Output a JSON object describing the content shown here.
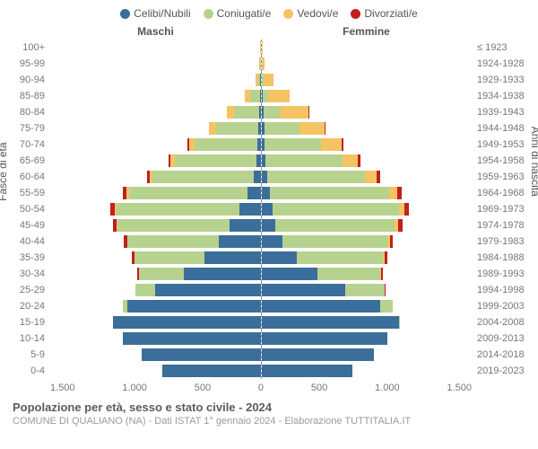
{
  "legend": [
    {
      "label": "Celibi/Nubili",
      "color": "#3b6e9a"
    },
    {
      "label": "Coniugati/e",
      "color": "#b6d28e"
    },
    {
      "label": "Vedovi/e",
      "color": "#f4c463"
    },
    {
      "label": "Divorziati/e",
      "color": "#c21f1f"
    }
  ],
  "header": {
    "male": "Maschi",
    "female": "Femmine"
  },
  "axes": {
    "y_left_label": "Fasce di età",
    "y_right_label": "Anni di nascita",
    "x_ticks": [
      "1.500",
      "1.000",
      "500",
      "0",
      "500",
      "1.000",
      "1.500"
    ],
    "x_max": 1500
  },
  "footer": {
    "title": "Popolazione per età, sesso e stato civile - 2024",
    "subtitle": "COMUNE DI QUALIANO (NA) - Dati ISTAT 1° gennaio 2024 - Elaborazione TUTTITALIA.IT"
  },
  "colors": {
    "celibi": "#3b6e9a",
    "coniugati": "#b6d28e",
    "vedovi": "#f4c463",
    "divorziati": "#c21f1f",
    "bg": "#ffffff",
    "axis_dash": "#999999",
    "text_muted": "#777777"
  },
  "rows": [
    {
      "age": "100+",
      "years": "≤ 1923",
      "m": {
        "cel": 0,
        "con": 0,
        "ved": 3,
        "div": 0
      },
      "f": {
        "cel": 0,
        "con": 0,
        "ved": 6,
        "div": 0
      }
    },
    {
      "age": "95-99",
      "years": "1924-1928",
      "m": {
        "cel": 0,
        "con": 3,
        "ved": 6,
        "div": 0
      },
      "f": {
        "cel": 0,
        "con": 3,
        "ved": 20,
        "div": 0
      }
    },
    {
      "age": "90-94",
      "years": "1929-1933",
      "m": {
        "cel": 2,
        "con": 15,
        "ved": 20,
        "div": 0
      },
      "f": {
        "cel": 5,
        "con": 10,
        "ved": 70,
        "div": 0
      }
    },
    {
      "age": "85-89",
      "years": "1934-1938",
      "m": {
        "cel": 5,
        "con": 70,
        "ved": 40,
        "div": 0
      },
      "f": {
        "cel": 10,
        "con": 40,
        "ved": 150,
        "div": 0
      }
    },
    {
      "age": "80-84",
      "years": "1939-1943",
      "m": {
        "cel": 10,
        "con": 180,
        "ved": 50,
        "div": 2
      },
      "f": {
        "cel": 15,
        "con": 120,
        "ved": 200,
        "div": 3
      }
    },
    {
      "age": "75-79",
      "years": "1944-1948",
      "m": {
        "cel": 15,
        "con": 300,
        "ved": 50,
        "div": 5
      },
      "f": {
        "cel": 20,
        "con": 250,
        "ved": 180,
        "div": 5
      }
    },
    {
      "age": "70-74",
      "years": "1949-1953",
      "m": {
        "cel": 20,
        "con": 450,
        "ved": 40,
        "div": 10
      },
      "f": {
        "cel": 25,
        "con": 400,
        "ved": 150,
        "div": 10
      }
    },
    {
      "age": "65-69",
      "years": "1954-1958",
      "m": {
        "cel": 30,
        "con": 580,
        "ved": 30,
        "div": 15
      },
      "f": {
        "cel": 30,
        "con": 550,
        "ved": 110,
        "div": 15
      }
    },
    {
      "age": "60-64",
      "years": "1959-1963",
      "m": {
        "cel": 50,
        "con": 720,
        "ved": 20,
        "div": 20
      },
      "f": {
        "cel": 40,
        "con": 700,
        "ved": 80,
        "div": 25
      }
    },
    {
      "age": "55-59",
      "years": "1964-1968",
      "m": {
        "cel": 90,
        "con": 850,
        "ved": 15,
        "div": 25
      },
      "f": {
        "cel": 60,
        "con": 850,
        "ved": 60,
        "div": 30
      }
    },
    {
      "age": "50-54",
      "years": "1969-1973",
      "m": {
        "cel": 150,
        "con": 880,
        "ved": 10,
        "div": 30
      },
      "f": {
        "cel": 80,
        "con": 900,
        "ved": 40,
        "div": 35
      }
    },
    {
      "age": "45-49",
      "years": "1974-1978",
      "m": {
        "cel": 220,
        "con": 800,
        "ved": 5,
        "div": 25
      },
      "f": {
        "cel": 100,
        "con": 850,
        "ved": 25,
        "div": 30
      }
    },
    {
      "age": "40-44",
      "years": "1979-1983",
      "m": {
        "cel": 300,
        "con": 650,
        "ved": 3,
        "div": 20
      },
      "f": {
        "cel": 150,
        "con": 750,
        "ved": 15,
        "div": 25
      }
    },
    {
      "age": "35-39",
      "years": "1984-1988",
      "m": {
        "cel": 400,
        "con": 500,
        "ved": 0,
        "div": 15
      },
      "f": {
        "cel": 250,
        "con": 620,
        "ved": 8,
        "div": 20
      }
    },
    {
      "age": "30-34",
      "years": "1989-1993",
      "m": {
        "cel": 550,
        "con": 320,
        "ved": 0,
        "div": 8
      },
      "f": {
        "cel": 400,
        "con": 450,
        "ved": 3,
        "div": 12
      }
    },
    {
      "age": "25-29",
      "years": "1994-1998",
      "m": {
        "cel": 750,
        "con": 140,
        "ved": 0,
        "div": 3
      },
      "f": {
        "cel": 600,
        "con": 280,
        "ved": 0,
        "div": 5
      }
    },
    {
      "age": "20-24",
      "years": "1999-2003",
      "m": {
        "cel": 950,
        "con": 30,
        "ved": 0,
        "div": 0
      },
      "f": {
        "cel": 850,
        "con": 90,
        "ved": 0,
        "div": 0
      }
    },
    {
      "age": "15-19",
      "years": "2004-2008",
      "m": {
        "cel": 1050,
        "con": 0,
        "ved": 0,
        "div": 0
      },
      "f": {
        "cel": 980,
        "con": 5,
        "ved": 0,
        "div": 0
      }
    },
    {
      "age": "10-14",
      "years": "2009-2013",
      "m": {
        "cel": 980,
        "con": 0,
        "ved": 0,
        "div": 0
      },
      "f": {
        "cel": 900,
        "con": 0,
        "ved": 0,
        "div": 0
      }
    },
    {
      "age": "5-9",
      "years": "2014-2018",
      "m": {
        "cel": 850,
        "con": 0,
        "ved": 0,
        "div": 0
      },
      "f": {
        "cel": 800,
        "con": 0,
        "ved": 0,
        "div": 0
      }
    },
    {
      "age": "0-4",
      "years": "2019-2023",
      "m": {
        "cel": 700,
        "con": 0,
        "ved": 0,
        "div": 0
      },
      "f": {
        "cel": 650,
        "con": 0,
        "ved": 0,
        "div": 0
      }
    }
  ]
}
